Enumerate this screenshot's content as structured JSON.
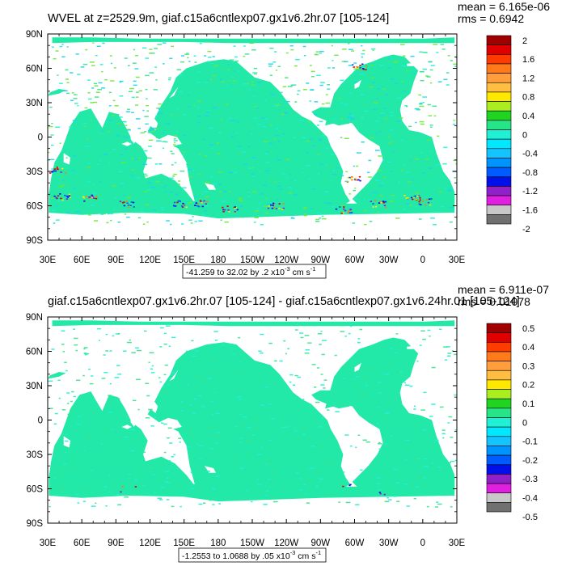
{
  "colors": {
    "ocean": "#22e8a8",
    "ocean_alt": "#38e28c",
    "ocean_cyan": "#20f0d4",
    "land": "#ffffff",
    "frame": "#000000"
  },
  "chart_data": [
    {
      "type": "heatmap",
      "title": "WVEL at z=2529.9m, giaf.c15a6cntlexp07.gx1v6.2hr.07 [105-124]",
      "stats": {
        "mean": "mean = 6.165e-06",
        "rms": "rms = 0.6942"
      },
      "x_tick_labels": [
        "30E",
        "60E",
        "90E",
        "120E",
        "150E",
        "180",
        "150W",
        "120W",
        "90W",
        "60W",
        "30W",
        "0",
        "30E"
      ],
      "y_tick_labels": [
        "90N",
        "60N",
        "30N",
        "0",
        "30S",
        "60S",
        "90S"
      ],
      "xlim": [
        30,
        390
      ],
      "ylim": [
        -90,
        90
      ],
      "range_note": {
        "prefix": "-41.259 to 32.02 by .2 x10",
        "exponent": "-3",
        "unit": " cm s",
        "unit_exp": "-1"
      },
      "colorbar": {
        "labels": [
          "2",
          "1.6",
          "1.2",
          "0.8",
          "0.4",
          "0",
          "-0.4",
          "-0.8",
          "-1.2",
          "-1.6",
          "-2"
        ],
        "colors": [
          "#a00000",
          "#e00000",
          "#ff3c00",
          "#ff7a1a",
          "#ff9e3a",
          "#ffbe40",
          "#ffe800",
          "#aaee22",
          "#22d422",
          "#28e488",
          "#20f0d4",
          "#00e8ff",
          "#14c4ff",
          "#0094ff",
          "#005cff",
          "#0010e8",
          "#9020c8",
          "#e020e0",
          "#c8c8c8",
          "#707070"
        ]
      },
      "noise_level": "high"
    },
    {
      "type": "heatmap",
      "title": "giaf.c15a6cntlexp07.gx1v6.2hr.07 [105-124] - giaf.c15a6cntlexp07.gx1v6.24hr.01 [105-124]",
      "stats": {
        "mean": "mean = 6.911e-07",
        "rms": "rms = 0.01078"
      },
      "x_tick_labels": [
        "30E",
        "60E",
        "90E",
        "120E",
        "150E",
        "180",
        "150W",
        "120W",
        "90W",
        "60W",
        "30W",
        "0",
        "30E"
      ],
      "y_tick_labels": [
        "90N",
        "60N",
        "30N",
        "0",
        "30S",
        "60S",
        "90S"
      ],
      "xlim": [
        30,
        390
      ],
      "ylim": [
        -90,
        90
      ],
      "range_note": {
        "prefix": "-1.2553 to 1.0688 by .05 x10",
        "exponent": "-3",
        "unit": " cm s",
        "unit_exp": "-1"
      },
      "colorbar": {
        "labels": [
          "0.5",
          "0.4",
          "0.3",
          "0.2",
          "0.1",
          "0",
          "-0.1",
          "-0.2",
          "-0.3",
          "-0.4",
          "-0.5"
        ],
        "colors": [
          "#a00000",
          "#e00000",
          "#ff3c00",
          "#ff7a1a",
          "#ff9e3a",
          "#ffbe40",
          "#ffe800",
          "#aaee22",
          "#22d422",
          "#28e488",
          "#20f0d4",
          "#00e8ff",
          "#14c4ff",
          "#0094ff",
          "#005cff",
          "#0010e8",
          "#9020c8",
          "#e020e0",
          "#c8c8c8",
          "#707070"
        ]
      },
      "noise_level": "low"
    }
  ]
}
